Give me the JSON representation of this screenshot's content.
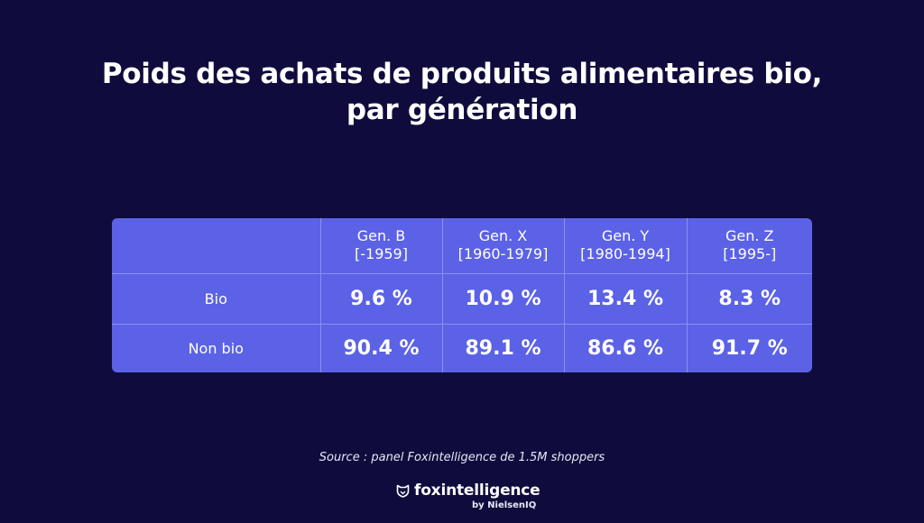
{
  "title": {
    "line1": "Poids des achats de produits alimentaires bio,",
    "line2": "par génération"
  },
  "chart_data": {
    "type": "table",
    "columns": [
      {
        "name": "Gen. B",
        "range": "[-1959]"
      },
      {
        "name": "Gen. X",
        "range": "[1960-1979]"
      },
      {
        "name": "Gen. Y",
        "range": "[1980-1994]"
      },
      {
        "name": "Gen. Z",
        "range": "[1995-]"
      }
    ],
    "rows": [
      {
        "label": "Bio",
        "values": [
          "9.6 %",
          "10.9 %",
          "13.4 %",
          "8.3 %"
        ]
      },
      {
        "label": "Non bio",
        "values": [
          "90.4 %",
          "89.1 %",
          "86.6 %",
          "91.7 %"
        ]
      }
    ]
  },
  "source": "Source : panel Foxintelligence de 1.5M shoppers",
  "brand": {
    "name": "foxintelligence",
    "sub": "by NielsenIQ",
    "icon": "fox-shield-icon"
  },
  "colors": {
    "background": "#0f0c3d",
    "table_fill": "#5b62e6",
    "table_lines": "#8a90f0"
  }
}
